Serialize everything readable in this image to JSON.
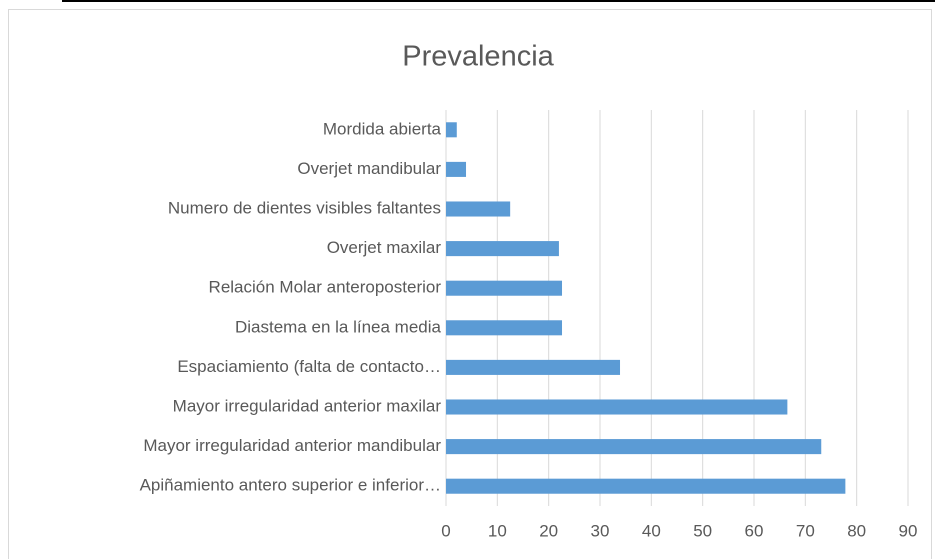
{
  "chart_data": {
    "type": "bar",
    "orientation": "horizontal",
    "title": "Prevalencia",
    "categories": [
      "Mordida abierta",
      "Overjet mandibular",
      "Numero de dientes visibles faltantes",
      "Overjet maxilar",
      "Relación Molar anteroposterior",
      "Diastema en la línea media",
      "Espaciamiento (falta de contacto…",
      "Mayor irregularidad anterior maxilar",
      "Mayor irregularidad anterior mandibular",
      "Apiñamiento antero superior  e inferior…"
    ],
    "values": [
      2.1,
      3.9,
      12.5,
      22.0,
      22.6,
      22.6,
      33.9,
      66.5,
      73.1,
      77.8
    ],
    "color": "#5b9bd5",
    "xlim": [
      0,
      90
    ],
    "xticks": [
      0,
      10,
      20,
      30,
      40,
      50,
      60,
      70,
      80,
      90
    ],
    "grid": true
  }
}
